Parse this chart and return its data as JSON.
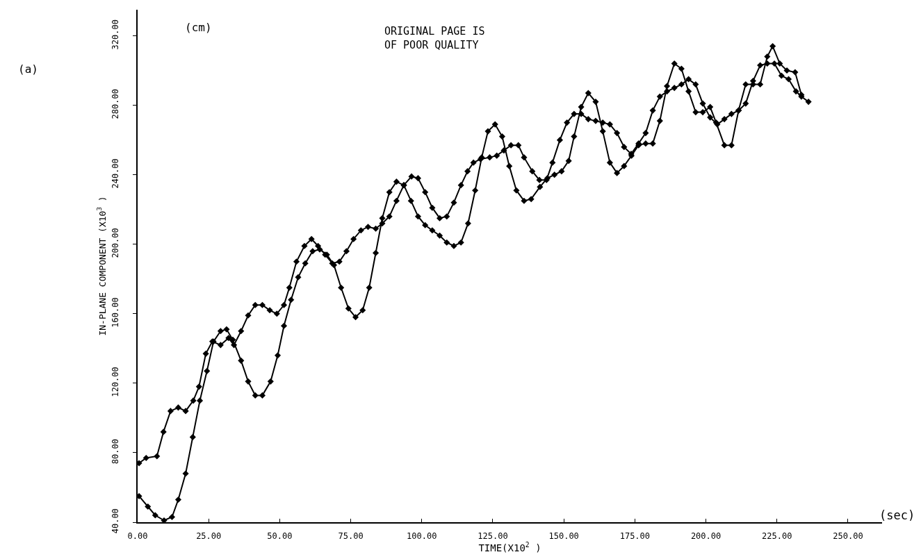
{
  "chart_data": {
    "type": "line",
    "xlabel": "TIME(X10$^{2}$ )",
    "ylabel": "IN-PLANE COMPONENT (X10$^{3}$ )",
    "annotations": [
      "(a)",
      "(cm)",
      "(sec)",
      "ORIGINAL PAGE IS\nOF POOR QUALITY"
    ],
    "xlim": [
      0,
      262
    ],
    "ylim": [
      40,
      335
    ],
    "xticks": [
      {
        "value": 0,
        "label": "0.00"
      },
      {
        "value": 25,
        "label": "25.00"
      },
      {
        "value": 50,
        "label": "50.00"
      },
      {
        "value": 75,
        "label": "75.00"
      },
      {
        "value": 100,
        "label": "100.00"
      },
      {
        "value": 125,
        "label": "125.00"
      },
      {
        "value": 150,
        "label": "150.00"
      },
      {
        "value": 175,
        "label": "175.00"
      },
      {
        "value": 200,
        "label": "200.00"
      },
      {
        "value": 225,
        "label": "225.00"
      },
      {
        "value": 250,
        "label": "250.00"
      }
    ],
    "yticks": [
      {
        "value": 40,
        "label": "40.00"
      },
      {
        "value": 80,
        "label": "80.00"
      },
      {
        "value": 120,
        "label": "120.00"
      },
      {
        "value": 160,
        "label": "160.00"
      },
      {
        "value": 200,
        "label": "200.00"
      },
      {
        "value": 240,
        "label": "240.00"
      },
      {
        "value": 280,
        "label": "280.00"
      },
      {
        "value": 320,
        "label": "320.00"
      }
    ],
    "marker": "diamond",
    "line_style": "solid",
    "series": [
      {
        "color": "#000000",
        "x": [
          0.5,
          3.0,
          6.8,
          9.1,
          11.6,
          14.3,
          16.9,
          19.6,
          21.6,
          24.0,
          26.3,
          29.2,
          32.0,
          33.9,
          36.4,
          38.9,
          41.4,
          43.9,
          46.5,
          49.0,
          51.5,
          53.4,
          55.9,
          58.7,
          61.2,
          63.5,
          66.0,
          68.5,
          71.0,
          73.5,
          76.0,
          78.6,
          81.1,
          83.8,
          86.1,
          88.6,
          91.1,
          93.7,
          96.4,
          98.7,
          101.2,
          103.7,
          106.3,
          108.8,
          111.3,
          113.8,
          116.1,
          118.2,
          120.7,
          123.9,
          126.4,
          128.9,
          131.4,
          134.0,
          136.0,
          138.9,
          141.4,
          143.9,
          146.0,
          148.6,
          151.1,
          153.6,
          156.1,
          158.6,
          161.2,
          163.7,
          166.2,
          168.7,
          171.2,
          173.7,
          176.3,
          178.8,
          181.3,
          183.8,
          186.3,
          188.9,
          191.4,
          193.9,
          196.4,
          198.9,
          201.5,
          204.0,
          206.5,
          209.0,
          211.5,
          214.0,
          216.6,
          219.1,
          221.6,
          224.1,
          226.6,
          229.1,
          231.7,
          233.6,
          236.1
        ],
        "values": [
          74,
          77,
          78,
          92,
          104,
          106,
          104,
          110,
          118,
          137,
          144,
          142,
          146,
          142,
          150,
          159,
          165,
          165,
          162,
          160,
          165,
          175,
          190,
          199,
          203,
          199,
          194,
          189,
          190,
          196,
          203,
          208,
          210,
          209,
          212,
          216,
          225,
          234,
          239,
          238,
          230,
          221,
          215,
          216,
          224,
          234,
          242,
          247,
          249,
          250,
          251,
          254,
          257,
          257,
          250,
          242,
          237,
          237,
          247,
          260,
          270,
          275,
          275,
          272,
          271,
          270,
          269,
          264,
          256,
          252,
          258,
          264,
          277,
          285,
          288,
          290,
          292,
          295,
          292,
          281,
          273,
          269,
          272,
          275,
          277,
          281,
          294,
          303,
          304,
          304,
          297,
          295,
          288,
          285,
          282
        ]
      },
      {
        "color": "#000000",
        "x": [
          0.5,
          3.6,
          6.2,
          9.3,
          12.1,
          14.3,
          16.9,
          19.4,
          21.9,
          24.4,
          26.7,
          29.2,
          31.3,
          33.5,
          36.4,
          38.9,
          41.4,
          43.9,
          46.8,
          49.3,
          51.5,
          54.0,
          56.5,
          59.0,
          61.6,
          64.1,
          66.6,
          69.1,
          71.6,
          74.2,
          76.7,
          79.2,
          81.5,
          83.8,
          86.1,
          88.6,
          91.1,
          93.7,
          96.2,
          98.7,
          101.2,
          103.7,
          106.3,
          108.8,
          111.3,
          113.8,
          116.3,
          118.8,
          121.1,
          123.3,
          125.8,
          128.3,
          130.8,
          133.3,
          136.0,
          138.5,
          141.6,
          144.2,
          146.7,
          149.2,
          151.7,
          153.6,
          156.1,
          158.6,
          161.2,
          163.7,
          166.2,
          168.7,
          171.2,
          173.8,
          176.3,
          178.8,
          181.3,
          183.8,
          186.3,
          188.9,
          191.4,
          193.9,
          196.4,
          198.9,
          201.5,
          203.6,
          206.5,
          209.0,
          211.5,
          214.0,
          216.6,
          219.1,
          221.6,
          223.5,
          226.0,
          228.5,
          231.4,
          233.6
        ],
        "values": [
          55,
          49,
          44,
          41,
          43,
          53,
          68,
          89,
          110,
          127,
          144,
          150,
          151,
          145,
          133,
          121,
          113,
          113,
          121,
          136,
          153,
          168,
          181,
          189,
          196,
          197,
          194,
          188,
          175,
          163,
          158,
          162,
          175,
          195,
          215,
          230,
          236,
          234,
          225,
          216,
          211,
          208,
          205,
          201,
          199,
          201,
          212,
          231,
          250,
          265,
          269,
          262,
          245,
          231,
          225,
          226,
          233,
          238,
          240,
          242,
          248,
          262,
          279,
          287,
          282,
          265,
          247,
          241,
          245,
          251,
          257,
          258,
          258,
          271,
          291,
          304,
          301,
          288,
          276,
          276,
          279,
          270,
          257,
          257,
          277,
          292,
          292,
          292,
          308,
          314,
          304,
          300,
          299,
          286
        ]
      }
    ]
  }
}
